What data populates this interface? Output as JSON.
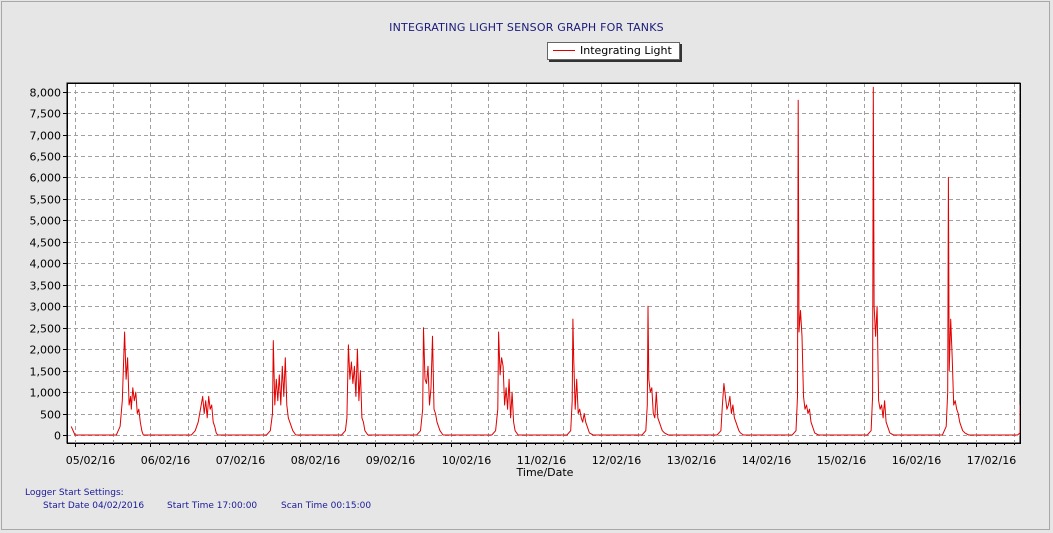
{
  "chart_data": {
    "type": "line",
    "title": "INTEGRATING LIGHT SENSOR GRAPH FOR TANKS",
    "xlabel": "Time/Date",
    "ylabel": "",
    "ylim": [
      0,
      8200
    ],
    "yticks": [
      0,
      500,
      1000,
      1500,
      2000,
      2500,
      3000,
      3500,
      4000,
      4500,
      5000,
      5500,
      6000,
      6500,
      7000,
      7500,
      8000
    ],
    "ytick_labels": [
      "0",
      "500",
      "1,000",
      "1,500",
      "2,000",
      "2,500",
      "3,000",
      "3,500",
      "4,000",
      "4,500",
      "5,000",
      "5,500",
      "6,000",
      "6,500",
      "7,000",
      "7,500",
      "8,000"
    ],
    "xtick_labels": [
      "05/02/16",
      "06/02/16",
      "07/02/16",
      "08/02/16",
      "09/02/16",
      "10/02/16",
      "11/02/16",
      "12/02/16",
      "13/02/16",
      "14/02/16",
      "15/02/16",
      "16/02/16",
      "17/02/16"
    ],
    "grid": true,
    "legend_position": "top-center",
    "color": "#e00000",
    "series": [
      {
        "name": "Integrating Light",
        "x_unit": "days after 05/02/16 00:00",
        "x": [
          -0.05,
          0.0,
          0.03,
          0.55,
          0.6,
          0.63,
          0.66,
          0.68,
          0.7,
          0.72,
          0.74,
          0.75,
          0.77,
          0.79,
          0.81,
          0.83,
          0.85,
          0.87,
          0.89,
          0.91,
          0.93,
          0.96,
          1.0,
          1.55,
          1.6,
          1.64,
          1.68,
          1.7,
          1.72,
          1.74,
          1.76,
          1.78,
          1.8,
          1.82,
          1.84,
          1.86,
          1.88,
          1.9,
          1.92,
          1.96,
          2.0,
          2.55,
          2.6,
          2.63,
          2.64,
          2.66,
          2.68,
          2.7,
          2.72,
          2.74,
          2.76,
          2.78,
          2.8,
          2.82,
          2.84,
          2.86,
          2.9,
          2.94,
          3.0,
          3.55,
          3.6,
          3.62,
          3.64,
          3.66,
          3.68,
          3.7,
          3.72,
          3.74,
          3.76,
          3.78,
          3.8,
          3.82,
          3.84,
          3.86,
          3.9,
          3.95,
          4.0,
          4.55,
          4.6,
          4.63,
          4.64,
          4.66,
          4.68,
          4.7,
          4.72,
          4.74,
          4.76,
          4.78,
          4.8,
          4.82,
          4.84,
          4.86,
          4.9,
          4.95,
          5.0,
          5.55,
          5.6,
          5.63,
          5.64,
          5.66,
          5.68,
          5.7,
          5.72,
          5.74,
          5.76,
          5.78,
          5.8,
          5.82,
          5.84,
          5.86,
          5.9,
          5.95,
          6.0,
          6.55,
          6.6,
          6.62,
          6.63,
          6.64,
          6.66,
          6.68,
          6.7,
          6.72,
          6.74,
          6.76,
          6.78,
          6.8,
          6.82,
          6.85,
          6.9,
          6.95,
          7.0,
          7.55,
          7.6,
          7.62,
          7.63,
          7.64,
          7.66,
          7.68,
          7.7,
          7.72,
          7.74,
          7.76,
          7.78,
          7.8,
          7.82,
          7.85,
          7.9,
          7.95,
          8.0,
          8.55,
          8.6,
          8.62,
          8.64,
          8.66,
          8.68,
          8.7,
          8.72,
          8.74,
          8.76,
          8.78,
          8.8,
          8.82,
          8.84,
          8.86,
          8.9,
          8.95,
          9.0,
          9.55,
          9.6,
          9.62,
          9.63,
          9.64,
          9.66,
          9.68,
          9.7,
          9.72,
          9.74,
          9.76,
          9.78,
          9.8,
          9.82,
          9.85,
          9.9,
          9.95,
          10.0,
          10.55,
          10.6,
          10.62,
          10.63,
          10.64,
          10.66,
          10.68,
          10.7,
          10.72,
          10.74,
          10.76,
          10.78,
          10.8,
          10.82,
          10.85,
          10.9,
          10.95,
          11.0,
          11.55,
          11.6,
          11.62,
          11.63,
          11.64,
          11.66,
          11.68,
          11.7,
          11.72,
          11.74,
          11.76,
          11.78,
          11.8,
          11.82,
          11.85,
          11.9,
          11.95,
          12.0,
          12.55,
          12.6,
          12.63,
          12.65,
          12.67
        ],
        "y": [
          200,
          0,
          0,
          0,
          200,
          800,
          2400,
          1300,
          1800,
          700,
          900,
          600,
          1100,
          800,
          1000,
          500,
          600,
          300,
          100,
          0,
          0,
          0,
          0,
          0,
          100,
          300,
          700,
          900,
          500,
          800,
          400,
          900,
          600,
          700,
          300,
          200,
          50,
          0,
          0,
          0,
          0,
          0,
          100,
          500,
          2200,
          700,
          1300,
          800,
          1400,
          700,
          1600,
          900,
          1800,
          700,
          400,
          300,
          100,
          0,
          0,
          0,
          100,
          400,
          2100,
          1300,
          1700,
          1200,
          1600,
          900,
          2000,
          800,
          1500,
          400,
          300,
          100,
          0,
          0,
          0,
          0,
          100,
          600,
          2500,
          1300,
          1200,
          1600,
          700,
          1100,
          2300,
          600,
          500,
          300,
          200,
          100,
          0,
          0,
          0,
          0,
          100,
          600,
          2400,
          1400,
          1800,
          1600,
          700,
          1100,
          600,
          1300,
          400,
          1000,
          300,
          100,
          0,
          0,
          0,
          0,
          100,
          800,
          2700,
          1800,
          600,
          1300,
          500,
          600,
          400,
          300,
          500,
          300,
          200,
          50,
          0,
          0,
          0,
          0,
          100,
          700,
          3000,
          1300,
          1000,
          1100,
          500,
          400,
          1000,
          400,
          300,
          200,
          100,
          50,
          0,
          0,
          0,
          0,
          100,
          700,
          1200,
          900,
          600,
          700,
          900,
          500,
          700,
          400,
          300,
          200,
          100,
          50,
          0,
          0,
          0,
          0,
          100,
          900,
          7800,
          2400,
          2900,
          2300,
          900,
          600,
          700,
          500,
          600,
          300,
          200,
          50,
          0,
          0,
          0,
          0,
          100,
          900,
          8100,
          3000,
          2300,
          3000,
          800,
          600,
          700,
          400,
          800,
          300,
          200,
          50,
          0,
          0,
          0,
          0,
          200,
          1000,
          6000,
          1500,
          2700,
          1800,
          700,
          800,
          600,
          500,
          300,
          200,
          100,
          50,
          0,
          0,
          0,
          0,
          50,
          200,
          700,
          0
        ]
      }
    ]
  },
  "settings": {
    "heading": "Logger Start Settings:",
    "start_date": "Start Date 04/02/2016",
    "start_time": "Start Time 17:00:00",
    "scan_time": "Scan Time 00:15:00"
  }
}
